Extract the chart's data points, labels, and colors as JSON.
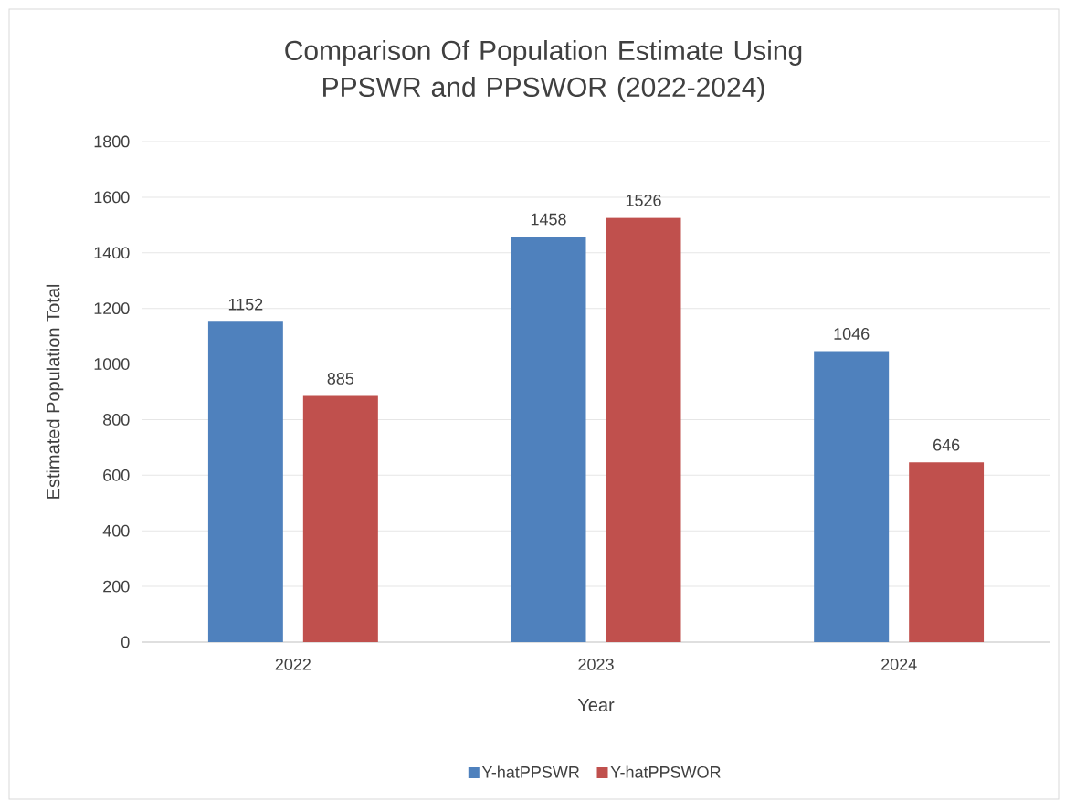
{
  "chart_data": {
    "type": "bar",
    "title": "Comparison Of Population Estimate Using PPSWR and PPSWOR (2022-2024)",
    "xlabel": "Year",
    "ylabel": "Estimated Population Total",
    "categories": [
      "2022",
      "2023",
      "2024"
    ],
    "series": [
      {
        "name": "Y-hatPPSWR",
        "color": "#4f81bd",
        "values": [
          1152,
          1458,
          1046
        ]
      },
      {
        "name": "Y-hatPPSWOR",
        "color": "#c0504d",
        "values": [
          885,
          1526,
          646
        ]
      }
    ],
    "ylim": [
      0,
      1800
    ],
    "yticks": [
      0,
      200,
      400,
      600,
      800,
      1000,
      1200,
      1400,
      1600,
      1800
    ],
    "grid": "y",
    "legend": "bottom",
    "data_labels": true
  }
}
